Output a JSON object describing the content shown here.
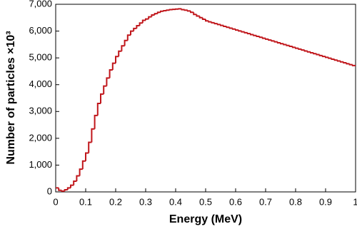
{
  "chart_data": {
    "type": "histogram",
    "xlabel": "Energy (MeV)",
    "ylabel": "Number of particles ×10³",
    "color": "#c0161b",
    "grid": false,
    "bins": [
      0,
      0.01,
      0.02,
      0.03,
      0.04,
      0.05,
      0.06,
      0.07,
      0.08,
      0.09,
      0.1,
      0.11,
      0.12,
      0.13,
      0.14,
      0.15,
      0.16,
      0.17,
      0.18,
      0.19,
      0.2,
      0.21,
      0.22,
      0.23,
      0.24,
      0.25,
      0.26,
      0.27,
      0.28,
      0.29,
      0.3,
      0.31,
      0.32,
      0.33,
      0.34,
      0.35,
      0.36,
      0.37,
      0.38,
      0.39,
      0.4,
      0.41,
      0.42,
      0.43,
      0.44,
      0.45,
      0.46,
      0.47,
      0.48,
      0.49,
      0.5,
      0.51,
      0.52,
      0.53,
      0.54,
      0.55,
      0.56,
      0.57,
      0.58,
      0.59,
      0.6,
      0.61,
      0.62,
      0.63,
      0.64,
      0.65,
      0.66,
      0.67,
      0.68,
      0.69,
      0.7,
      0.71,
      0.72,
      0.73,
      0.74,
      0.75,
      0.76,
      0.77,
      0.78,
      0.79,
      0.8,
      0.81,
      0.82,
      0.83,
      0.84,
      0.85,
      0.86,
      0.87,
      0.88,
      0.89,
      0.9,
      0.91,
      0.92,
      0.93,
      0.94,
      0.95,
      0.96,
      0.97,
      0.98,
      0.99,
      1
    ],
    "values": [
      150,
      60,
      30,
      80,
      150,
      250,
      400,
      600,
      850,
      1150,
      1450,
      1850,
      2350,
      2850,
      3300,
      3650,
      3950,
      4250,
      4550,
      4800,
      5050,
      5250,
      5450,
      5650,
      5850,
      6000,
      6100,
      6200,
      6300,
      6400,
      6450,
      6530,
      6600,
      6650,
      6700,
      6740,
      6760,
      6780,
      6800,
      6810,
      6820,
      6830,
      6800,
      6780,
      6750,
      6700,
      6620,
      6560,
      6500,
      6440,
      6380,
      6346,
      6312,
      6278,
      6244,
      6210,
      6176,
      6142,
      6108,
      6074,
      6040,
      6006,
      5972,
      5938,
      5904,
      5870,
      5836,
      5802,
      5768,
      5734,
      5700,
      5666,
      5632,
      5598,
      5564,
      5530,
      5496,
      5462,
      5428,
      5394,
      5360,
      5326,
      5292,
      5258,
      5224,
      5190,
      5156,
      5122,
      5088,
      5054,
      5020,
      4986,
      4952,
      4918,
      4884,
      4850,
      4816,
      4782,
      4748,
      4714
    ],
    "xlim": [
      0,
      1
    ],
    "xticks": [
      0,
      0.1,
      0.2,
      0.3,
      0.4,
      0.5,
      0.6,
      0.7,
      0.8,
      0.9,
      1
    ],
    "ylim": [
      0,
      7000
    ],
    "yticks": [
      0,
      {
        "value": 1000,
        "label": "1,000"
      },
      {
        "value": 2000,
        "label": "2,000"
      },
      {
        "value": 3000,
        "label": "3,000"
      },
      {
        "value": 4000,
        "label": "4,000"
      },
      {
        "value": 5000,
        "label": "5,000"
      },
      {
        "value": 6000,
        "label": "6,000"
      },
      {
        "value": 7000,
        "label": "7,000"
      }
    ]
  }
}
